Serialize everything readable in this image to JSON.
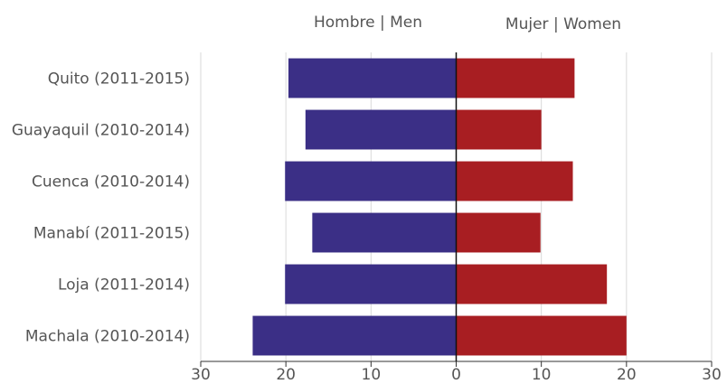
{
  "chart_data": {
    "type": "bar",
    "orientation": "horizontal-diverging",
    "categories": [
      "Quito (2011-2015)",
      "Guayaquil (2010-2014)",
      "Cuenca (2010-2014)",
      "Manabí (2011-2015)",
      "Loja (2011-2014)",
      "Machala (2010-2014)"
    ],
    "series": [
      {
        "name": "Hombre | Men",
        "values": [
          19.7,
          17.7,
          20.1,
          16.9,
          20.1,
          23.9
        ],
        "color": "#3b2f86",
        "side": "left"
      },
      {
        "name": "Mujer | Women",
        "values": [
          13.9,
          10.0,
          13.7,
          9.9,
          17.7,
          20.0
        ],
        "color": "#a81e22",
        "side": "right"
      }
    ],
    "xlim": [
      -30,
      30
    ],
    "xticks": [
      -30,
      -20,
      -10,
      0,
      10,
      20,
      30
    ],
    "xtick_labels": [
      "30",
      "20",
      "10",
      "0",
      "10",
      "20",
      "30"
    ],
    "grid": true,
    "title": "",
    "xlabel": "",
    "ylabel": ""
  }
}
